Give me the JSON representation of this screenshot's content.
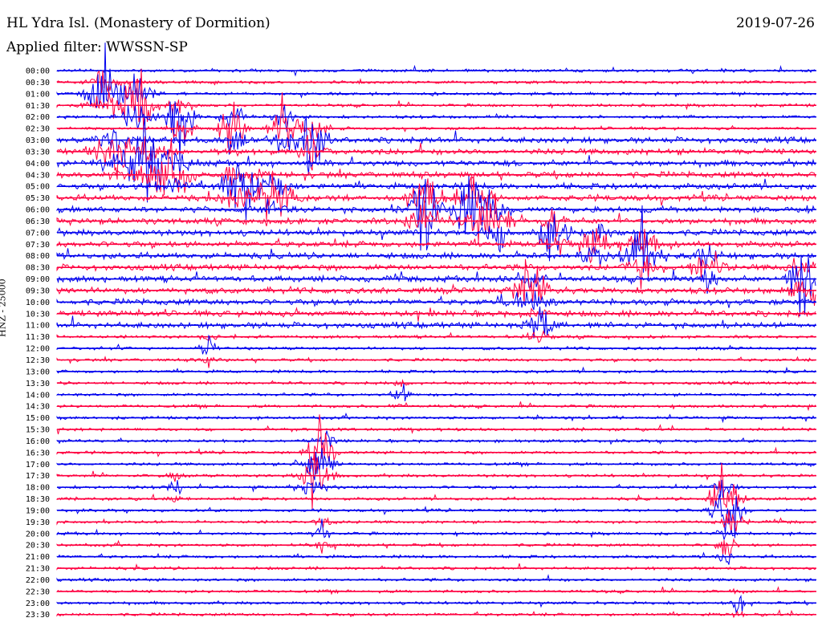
{
  "header": {
    "title": "HL Ydra Isl. (Monastery of Dormition)",
    "date": "2019-07-26",
    "filter": "Applied filter: WWSSN-SP"
  },
  "chart_data": {
    "type": "line",
    "title": "HL Ydra Isl. (Monastery of Dormition)",
    "ylabel": "HNZ - 25000",
    "xlabel": "",
    "row_labels": [
      "00:00",
      "00:30",
      "01:00",
      "01:30",
      "02:00",
      "02:30",
      "03:00",
      "03:30",
      "04:00",
      "04:30",
      "05:00",
      "05:30",
      "06:00",
      "06:30",
      "07:00",
      "07:30",
      "08:00",
      "08:30",
      "09:00",
      "09:30",
      "10:00",
      "10:30",
      "11:00",
      "11:30",
      "12:00",
      "12:30",
      "13:00",
      "13:30",
      "14:00",
      "14:30",
      "15:00",
      "15:30",
      "16:00",
      "16:30",
      "17:00",
      "17:30",
      "18:00",
      "18:30",
      "19:00",
      "19:30",
      "20:00",
      "20:30",
      "21:00",
      "21:30",
      "22:00",
      "22:30",
      "23:00",
      "23:30"
    ],
    "series_colors": [
      "#0000ee",
      "#ff0040"
    ],
    "grid": false,
    "legend": "none"
  }
}
